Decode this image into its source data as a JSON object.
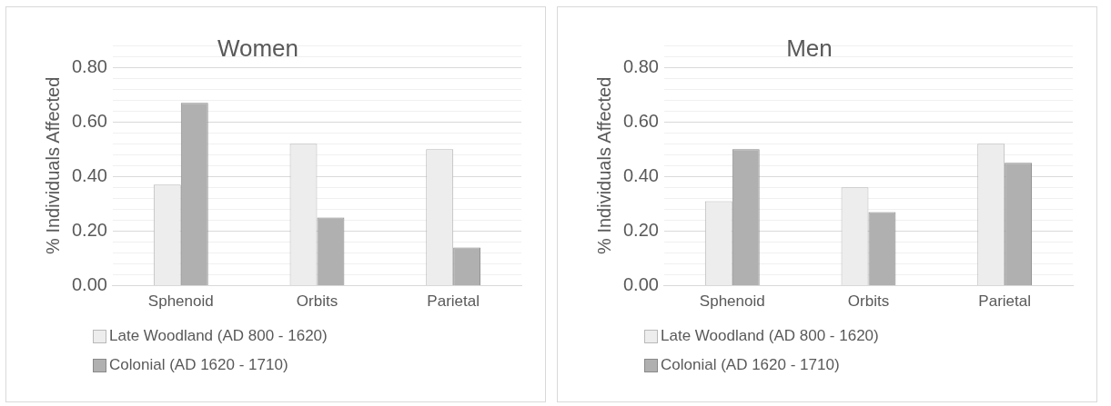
{
  "chart_data": [
    {
      "type": "bar",
      "title": "Women",
      "ylabel": "% Individuals Affected",
      "categories": [
        "Sphenoid",
        "Orbits",
        "Parietal"
      ],
      "series": [
        {
          "name": "Late Woodland (AD 800 - 1620)",
          "color": "#ededed",
          "values": [
            0.37,
            0.52,
            0.5
          ]
        },
        {
          "name": "Colonial (AD 1620 - 1710)",
          "color": "#b0b0b0",
          "values": [
            0.67,
            0.25,
            0.14
          ]
        }
      ],
      "ylim": [
        0,
        0.88
      ],
      "yticks": [
        {
          "value": 0,
          "label": "0.00"
        },
        {
          "value": 0.04,
          "label": null
        },
        {
          "value": 0.08,
          "label": null
        },
        {
          "value": 0.12,
          "label": null
        },
        {
          "value": 0.16,
          "label": null
        },
        {
          "value": 0.2,
          "label": "0.20"
        },
        {
          "value": 0.24,
          "label": null
        },
        {
          "value": 0.28,
          "label": null
        },
        {
          "value": 0.32,
          "label": null
        },
        {
          "value": 0.36,
          "label": null
        },
        {
          "value": 0.4,
          "label": "0.40"
        },
        {
          "value": 0.44,
          "label": null
        },
        {
          "value": 0.48,
          "label": null
        },
        {
          "value": 0.52,
          "label": null
        },
        {
          "value": 0.56,
          "label": null
        },
        {
          "value": 0.6,
          "label": "0.60"
        },
        {
          "value": 0.64,
          "label": null
        },
        {
          "value": 0.68,
          "label": null
        },
        {
          "value": 0.72,
          "label": null
        },
        {
          "value": 0.76,
          "label": null
        },
        {
          "value": 0.8,
          "label": "0.80"
        },
        {
          "value": 0.84,
          "label": null
        },
        {
          "value": 0.88,
          "label": null
        }
      ],
      "grid": "y",
      "legend": "bottom"
    },
    {
      "type": "bar",
      "title": "Men",
      "ylabel": "% Individuals Affected",
      "categories": [
        "Sphenoid",
        "Orbits",
        "Parietal"
      ],
      "series": [
        {
          "name": "Late Woodland (AD 800 - 1620)",
          "color": "#ededed",
          "values": [
            0.31,
            0.36,
            0.52
          ]
        },
        {
          "name": "Colonial (AD 1620 - 1710)",
          "color": "#b0b0b0",
          "values": [
            0.5,
            0.27,
            0.45
          ]
        }
      ],
      "ylim": [
        0,
        0.88
      ],
      "yticks": [
        {
          "value": 0,
          "label": "0.00"
        },
        {
          "value": 0.04,
          "label": null
        },
        {
          "value": 0.08,
          "label": null
        },
        {
          "value": 0.12,
          "label": null
        },
        {
          "value": 0.16,
          "label": null
        },
        {
          "value": 0.2,
          "label": "0.20"
        },
        {
          "value": 0.24,
          "label": null
        },
        {
          "value": 0.28,
          "label": null
        },
        {
          "value": 0.32,
          "label": null
        },
        {
          "value": 0.36,
          "label": null
        },
        {
          "value": 0.4,
          "label": "0.40"
        },
        {
          "value": 0.44,
          "label": null
        },
        {
          "value": 0.48,
          "label": null
        },
        {
          "value": 0.52,
          "label": null
        },
        {
          "value": 0.56,
          "label": null
        },
        {
          "value": 0.6,
          "label": "0.60"
        },
        {
          "value": 0.64,
          "label": null
        },
        {
          "value": 0.68,
          "label": null
        },
        {
          "value": 0.72,
          "label": null
        },
        {
          "value": 0.76,
          "label": null
        },
        {
          "value": 0.8,
          "label": "0.80"
        },
        {
          "value": 0.84,
          "label": null
        },
        {
          "value": 0.88,
          "label": null
        }
      ],
      "grid": "y",
      "legend": "bottom"
    }
  ]
}
